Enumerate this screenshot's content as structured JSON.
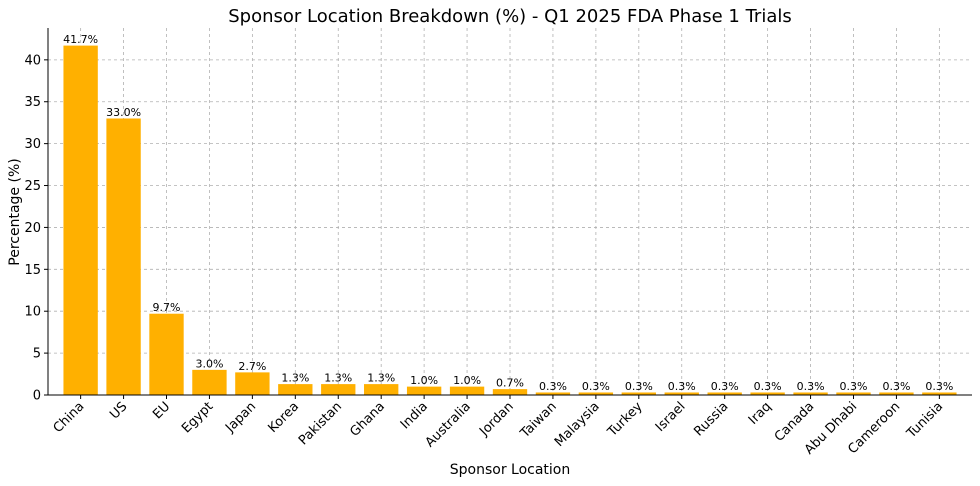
{
  "chart_data": {
    "type": "bar",
    "title": "Sponsor Location Breakdown (%) - Q1 2025 FDA Phase 1 Trials",
    "xlabel": "Sponsor Location",
    "ylabel": "Percentage (%)",
    "ylim": [
      0,
      43.8
    ],
    "yticks": [
      0,
      5,
      10,
      15,
      20,
      25,
      30,
      35,
      40
    ],
    "grid": true,
    "bar_color": "#FFB000",
    "categories": [
      "China",
      "US",
      "EU",
      "Egypt",
      "Japan",
      "Korea",
      "Pakistan",
      "Ghana",
      "India",
      "Australia",
      "Jordan",
      "Taiwan",
      "Malaysia",
      "Turkey",
      "Israel",
      "Russia",
      "Iraq",
      "Canada",
      "Abu Dhabi",
      "Cameroon",
      "Tunisia"
    ],
    "values": [
      41.7,
      33.0,
      9.7,
      3.0,
      2.7,
      1.3,
      1.3,
      1.3,
      1.0,
      1.0,
      0.7,
      0.3,
      0.3,
      0.3,
      0.3,
      0.3,
      0.3,
      0.3,
      0.3,
      0.3,
      0.3
    ],
    "value_labels": [
      "41.7%",
      "33.0%",
      "9.7%",
      "3.0%",
      "2.7%",
      "1.3%",
      "1.3%",
      "1.3%",
      "1.0%",
      "1.0%",
      "0.7%",
      "0.3%",
      "0.3%",
      "0.3%",
      "0.3%",
      "0.3%",
      "0.3%",
      "0.3%",
      "0.3%",
      "0.3%",
      "0.3%"
    ]
  }
}
